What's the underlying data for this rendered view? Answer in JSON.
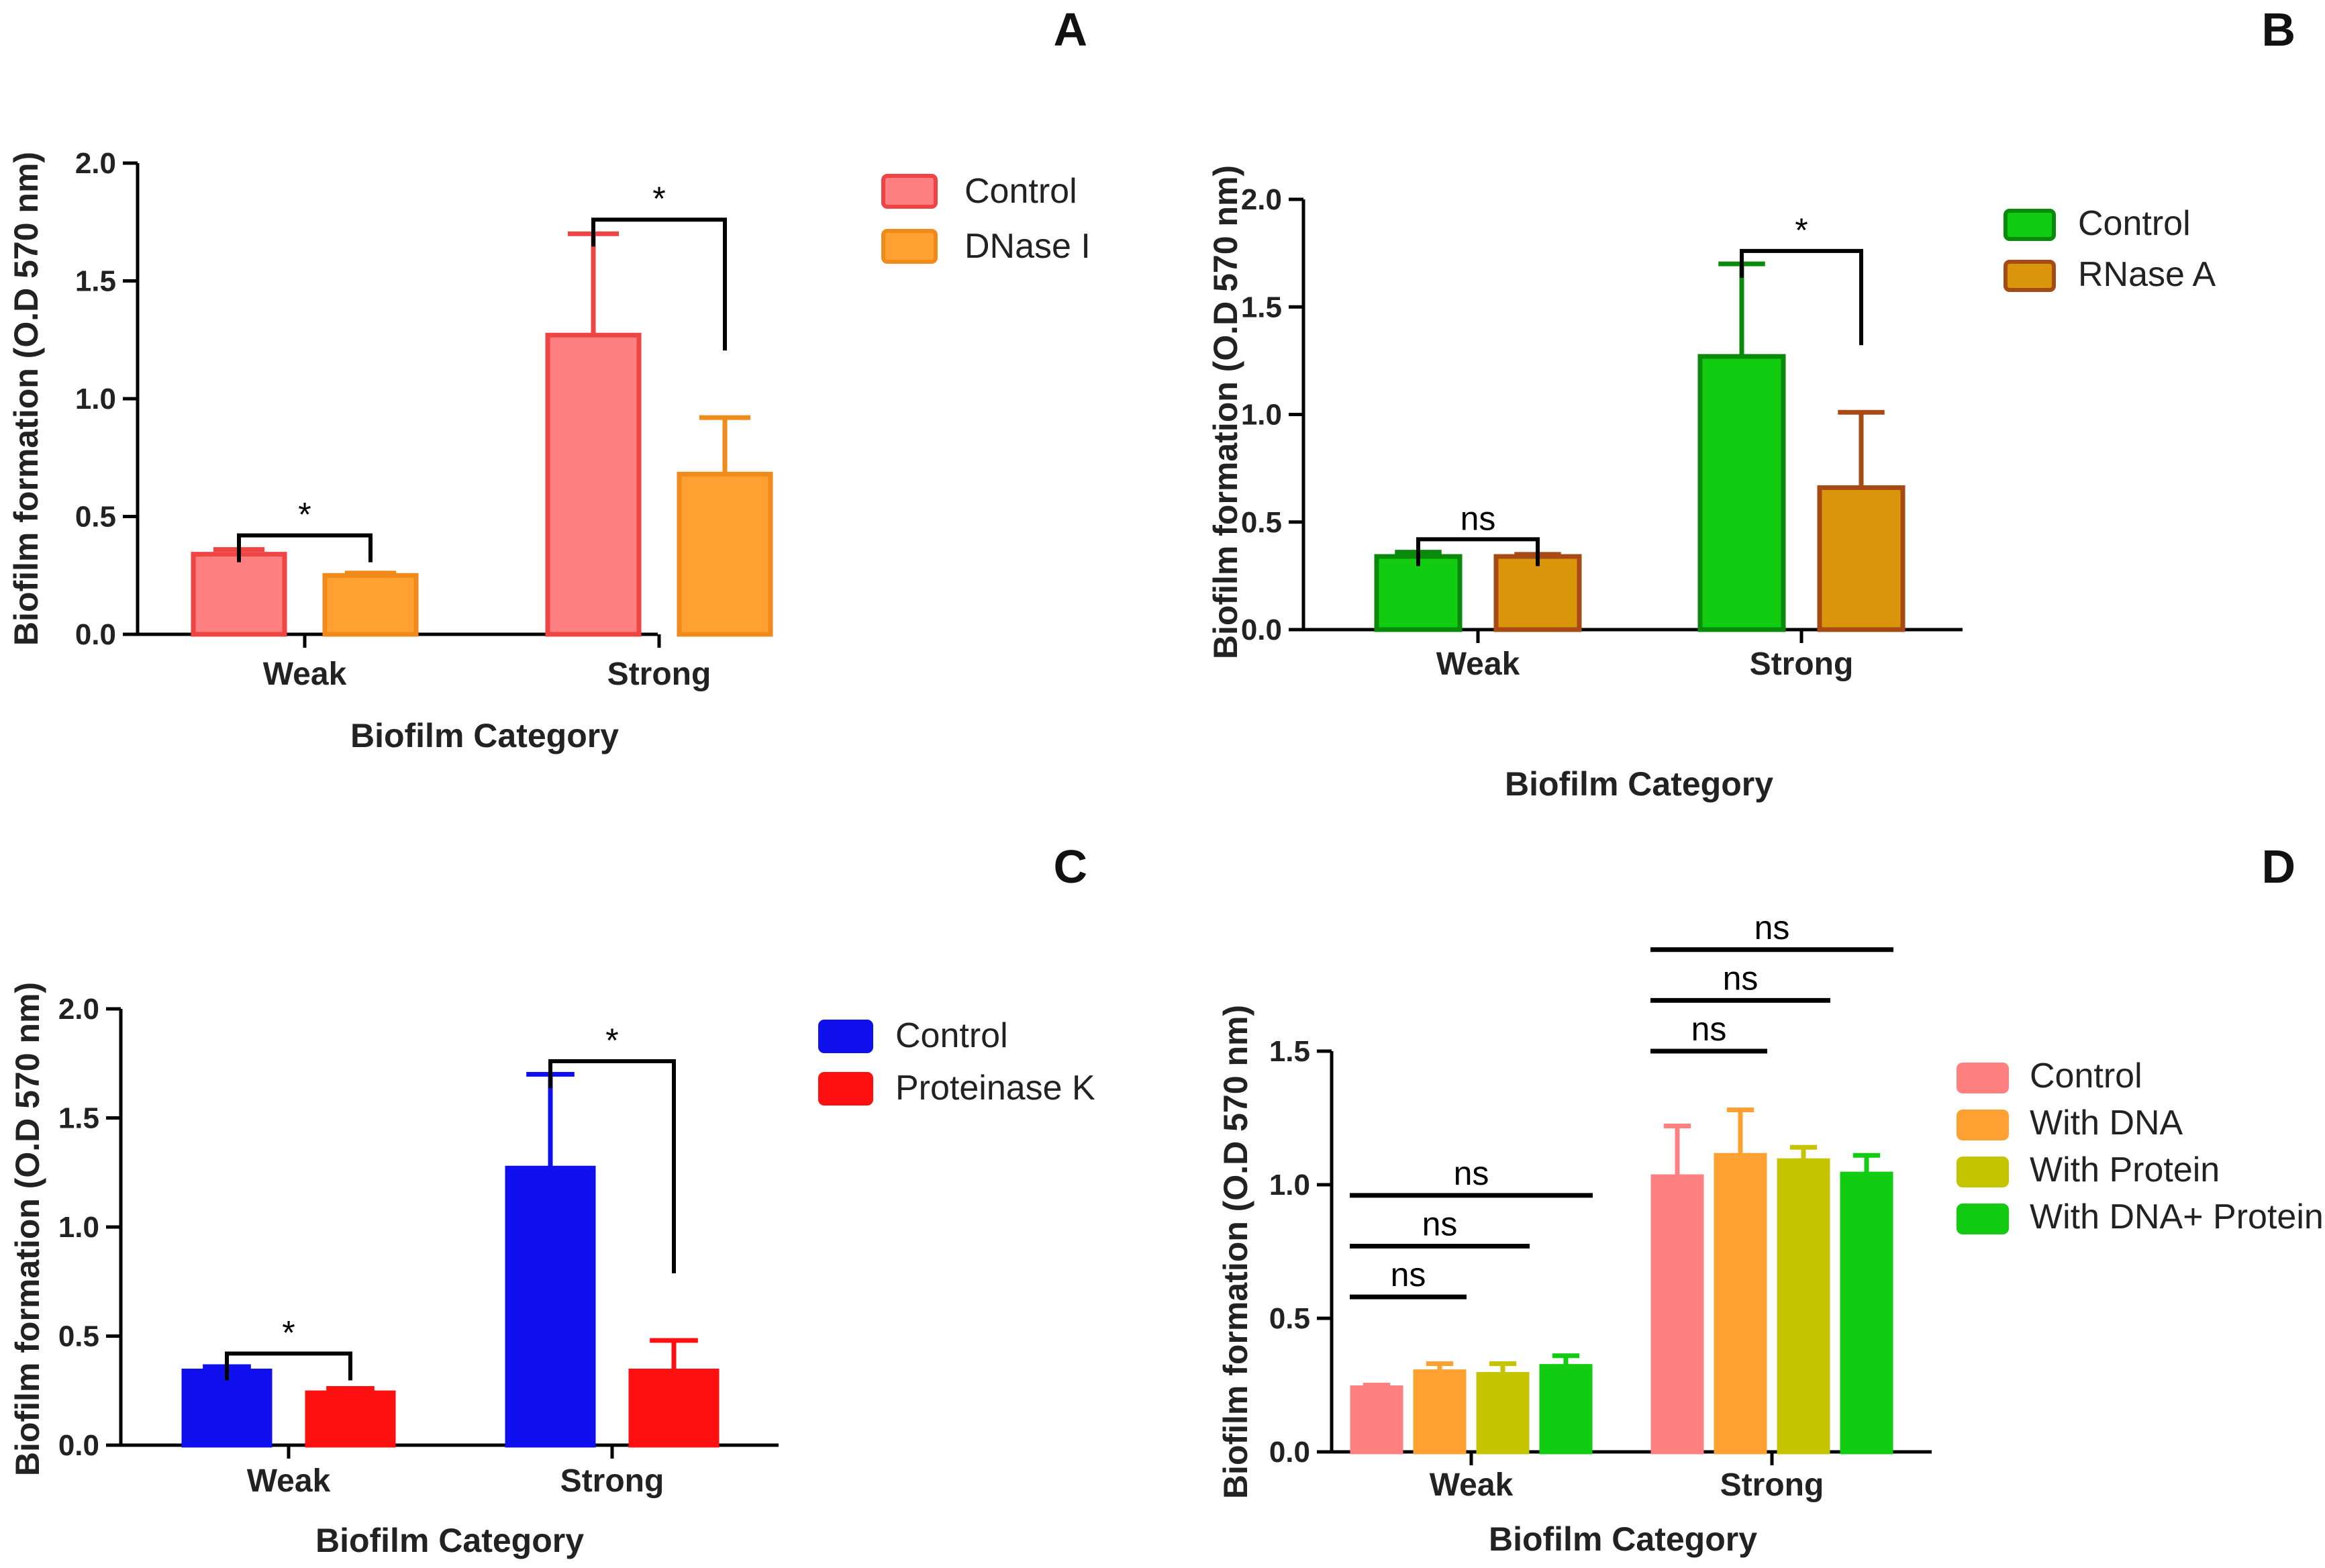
{
  "figure": {
    "panels": [
      "A",
      "B",
      "C",
      "D"
    ]
  },
  "chart_data": [
    {
      "panel": "A",
      "type": "bar",
      "title": "",
      "xlabel": "Biofilm Category",
      "ylabel": "Biofilm formation (O.D 570 nm)",
      "ylim": [
        0,
        2.0
      ],
      "yticks": [
        "0.0",
        "0.5",
        "1.0",
        "1.5",
        "2.0"
      ],
      "categories": [
        "Weak",
        "Strong"
      ],
      "series": [
        {
          "name": "Control",
          "fill": "#ff8080",
          "stroke": "#ee4444",
          "values": [
            0.34,
            1.27
          ],
          "errors": [
            0.02,
            0.43
          ]
        },
        {
          "name": "DNase I",
          "fill": "#ffa033",
          "stroke": "#f08a1a",
          "values": [
            0.25,
            0.68
          ],
          "errors": [
            0.01,
            0.24
          ]
        }
      ],
      "significance": [
        {
          "category": 0,
          "label": "*"
        },
        {
          "category": 1,
          "label": "*"
        }
      ],
      "legend": "top-right"
    },
    {
      "panel": "B",
      "type": "bar",
      "title": "",
      "xlabel": "Biofilm Category",
      "ylabel": "Biofilm formation (O.D 570 nm)",
      "ylim": [
        0,
        2.0
      ],
      "yticks": [
        "0.0",
        "0.5",
        "1.0",
        "1.5",
        "2.0"
      ],
      "categories": [
        "Weak",
        "Strong"
      ],
      "series": [
        {
          "name": "Control",
          "fill": "#11cc11",
          "stroke": "#0a8a0a",
          "values": [
            0.34,
            1.27
          ],
          "errors": [
            0.02,
            0.43
          ]
        },
        {
          "name": "RNase A",
          "fill": "#d9960a",
          "stroke": "#a84a15",
          "values": [
            0.34,
            0.66
          ],
          "errors": [
            0.01,
            0.35
          ]
        }
      ],
      "significance": [
        {
          "category": 0,
          "label": "ns"
        },
        {
          "category": 1,
          "label": "*"
        }
      ],
      "legend": "top-right"
    },
    {
      "panel": "C",
      "type": "bar",
      "title": "",
      "xlabel": "Biofilm Category",
      "ylabel": "Biofilm formation (O.D 570 nm)",
      "ylim": [
        0,
        2.0
      ],
      "yticks": [
        "0.0",
        "0.5",
        "1.0",
        "1.5",
        "2.0"
      ],
      "categories": [
        "Weak",
        "Strong"
      ],
      "series": [
        {
          "name": "Control",
          "fill": "#1010ee",
          "stroke": "#1010ee",
          "values": [
            0.34,
            1.27
          ],
          "errors": [
            0.02,
            0.43
          ]
        },
        {
          "name": "Proteinase K",
          "fill": "#ff1010",
          "stroke": "#ff1010",
          "values": [
            0.24,
            0.34
          ],
          "errors": [
            0.02,
            0.14
          ]
        }
      ],
      "significance": [
        {
          "category": 0,
          "label": "*"
        },
        {
          "category": 1,
          "label": "*"
        }
      ],
      "legend": "top-right"
    },
    {
      "panel": "D",
      "type": "bar",
      "title": "",
      "xlabel": "Biofilm Category",
      "ylabel": "Biofilm formation (O.D 570 nm)",
      "ylim": [
        0,
        1.5
      ],
      "yticks": [
        "0.0",
        "0.5",
        "1.0",
        "1.5"
      ],
      "categories": [
        "Weak",
        "Strong"
      ],
      "series": [
        {
          "name": "Control",
          "fill": "#ff8080",
          "stroke": "#ff8080",
          "values": [
            0.24,
            1.03
          ],
          "errors": [
            0.01,
            0.19
          ]
        },
        {
          "name": "With DNA",
          "fill": "#ffa033",
          "stroke": "#ffa033",
          "values": [
            0.3,
            1.11
          ],
          "errors": [
            0.03,
            0.17
          ]
        },
        {
          "name": "With Protein",
          "fill": "#c4c400",
          "stroke": "#c4c400",
          "values": [
            0.29,
            1.09
          ],
          "errors": [
            0.04,
            0.05
          ]
        },
        {
          "name": "With DNA+ Protein",
          "fill": "#11cc11",
          "stroke": "#11cc11",
          "values": [
            0.32,
            1.04
          ],
          "errors": [
            0.04,
            0.07
          ]
        }
      ],
      "significance": [
        {
          "category": 0,
          "from": 0,
          "to": 1,
          "label": "ns"
        },
        {
          "category": 0,
          "from": 0,
          "to": 2,
          "label": "ns"
        },
        {
          "category": 0,
          "from": 0,
          "to": 3,
          "label": "ns"
        },
        {
          "category": 1,
          "from": 0,
          "to": 1,
          "label": "ns"
        },
        {
          "category": 1,
          "from": 0,
          "to": 2,
          "label": "ns"
        },
        {
          "category": 1,
          "from": 0,
          "to": 3,
          "label": "ns"
        }
      ],
      "legend": "right"
    }
  ]
}
